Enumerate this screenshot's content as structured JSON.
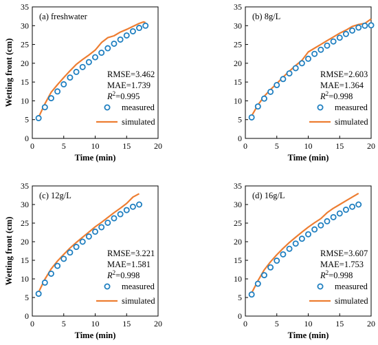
{
  "colors": {
    "measured_marker": "#1f7fc0",
    "simulated_line": "#ed7d31",
    "axis": "#000000",
    "background": "#ffffff"
  },
  "chart_data": [
    {
      "type": "scatter",
      "panel_label": "(a) freshwater",
      "xlabel": "Time (min)",
      "ylabel": "Wetting front (cm)",
      "xlim": [
        0,
        20
      ],
      "ylim": [
        0,
        35
      ],
      "xticks": [
        "0",
        "5",
        "10",
        "15",
        "20"
      ],
      "yticks": [
        "0",
        "5",
        "10",
        "15",
        "20",
        "25",
        "30",
        "35"
      ],
      "grid": false,
      "legend_position": "lower-right",
      "stats": {
        "rmse": "RMSE=3.462",
        "mae": "MAE=1.739",
        "r2_value": "=0.995"
      },
      "series": [
        {
          "name": "measured",
          "kind": "markers",
          "x": [
            1,
            2,
            3,
            4,
            5,
            6,
            7,
            8,
            9,
            10,
            11,
            12,
            13,
            14,
            15,
            16,
            17,
            18
          ],
          "y": [
            5.4,
            8.3,
            10.7,
            12.5,
            14.4,
            16.2,
            17.7,
            19.0,
            20.3,
            21.6,
            22.8,
            24.0,
            25.2,
            26.3,
            27.4,
            28.5,
            29.4,
            30.0
          ]
        },
        {
          "name": "simulated",
          "kind": "line",
          "x": [
            1,
            2,
            3,
            4,
            5,
            6,
            7,
            8,
            9,
            10,
            11,
            12,
            13,
            14,
            15,
            16,
            17,
            17.7,
            18
          ],
          "y": [
            5.6,
            9.2,
            12.3,
            14.3,
            16.2,
            18.0,
            19.7,
            21.0,
            22.2,
            23.5,
            25.5,
            26.8,
            27.3,
            28.3,
            29.0,
            29.8,
            30.6,
            31.0,
            30.8
          ]
        }
      ]
    },
    {
      "type": "scatter",
      "panel_label": "(b) 8g/L",
      "xlabel": "Time (min)",
      "ylabel": "",
      "xlim": [
        0,
        20
      ],
      "ylim": [
        0,
        35
      ],
      "xticks": [
        "0",
        "5",
        "10",
        "15",
        "20"
      ],
      "yticks": [
        "0",
        "5",
        "10",
        "15",
        "20",
        "25",
        "30",
        "35"
      ],
      "grid": false,
      "legend_position": "lower-right",
      "stats": {
        "rmse": "RMSE=2.603",
        "mae": "MAE=1.364",
        "r2_value": "=0.998"
      },
      "series": [
        {
          "name": "measured",
          "kind": "markers",
          "x": [
            1,
            2,
            3,
            4,
            5,
            6,
            7,
            8,
            9,
            10,
            11,
            12,
            13,
            14,
            15,
            16,
            17,
            18,
            19,
            20
          ],
          "y": [
            5.6,
            8.5,
            10.6,
            12.4,
            14.2,
            15.8,
            17.3,
            18.7,
            20.0,
            21.2,
            22.5,
            23.6,
            24.7,
            25.8,
            26.8,
            27.8,
            28.7,
            29.5,
            30.0,
            30.1
          ]
        },
        {
          "name": "simulated",
          "kind": "line",
          "x": [
            1,
            2,
            3,
            4,
            5,
            6,
            7,
            8,
            9,
            10,
            11,
            12,
            13,
            14,
            15,
            16,
            17,
            18,
            19,
            20
          ],
          "y": [
            6.0,
            8.9,
            11.2,
            13.0,
            14.6,
            16.3,
            17.9,
            19.4,
            20.8,
            23.0,
            24.0,
            25.0,
            26.0,
            27.0,
            28.0,
            28.8,
            29.8,
            30.3,
            30.6,
            31.8
          ]
        }
      ]
    },
    {
      "type": "scatter",
      "panel_label": "(c) 12g/L",
      "xlabel": "Time (min)",
      "ylabel": "Wetting front (cm)",
      "xlim": [
        0,
        20
      ],
      "ylim": [
        0,
        35
      ],
      "xticks": [
        "0",
        "5",
        "10",
        "15",
        "20"
      ],
      "yticks": [
        "0",
        "5",
        "10",
        "15",
        "20",
        "25",
        "30",
        "35"
      ],
      "grid": false,
      "legend_position": "lower-right",
      "stats": {
        "rmse": "RMSE=3.221",
        "mae": "MAE=1.581",
        "r2_value": "=0.998"
      },
      "series": [
        {
          "name": "measured",
          "kind": "markers",
          "x": [
            1,
            2,
            3,
            4,
            5,
            6,
            7,
            8,
            9,
            10,
            11,
            12,
            13,
            14,
            15,
            16,
            17
          ],
          "y": [
            6.0,
            9.0,
            11.4,
            13.5,
            15.4,
            17.1,
            18.6,
            20.0,
            21.4,
            22.7,
            23.9,
            25.1,
            26.3,
            27.4,
            28.5,
            29.4,
            30.0
          ]
        },
        {
          "name": "simulated",
          "kind": "line",
          "x": [
            1,
            2,
            3,
            4,
            5,
            6,
            7,
            8,
            9,
            10,
            11,
            12,
            13,
            14,
            15,
            16,
            17
          ],
          "y": [
            6.4,
            9.9,
            12.7,
            14.8,
            16.6,
            18.3,
            19.8,
            21.2,
            22.6,
            24.0,
            25.2,
            26.5,
            27.8,
            29.0,
            30.3,
            32.0,
            32.9
          ]
        }
      ]
    },
    {
      "type": "scatter",
      "panel_label": "(d) 16g/L",
      "xlabel": "Time (min)",
      "ylabel": "",
      "xlim": [
        0,
        20
      ],
      "ylim": [
        0,
        35
      ],
      "xticks": [
        "0",
        "5",
        "10",
        "15",
        "20"
      ],
      "yticks": [
        "0",
        "5",
        "10",
        "15",
        "20",
        "25",
        "30",
        "35"
      ],
      "grid": false,
      "legend_position": "lower-right",
      "stats": {
        "rmse": "RMSE=3.607",
        "mae": "MAE=1.753",
        "r2_value": "=0.998"
      },
      "series": [
        {
          "name": "measured",
          "kind": "markers",
          "x": [
            1,
            2,
            3,
            4,
            5,
            6,
            7,
            8,
            9,
            10,
            11,
            12,
            13,
            14,
            15,
            16,
            17,
            18
          ],
          "y": [
            5.8,
            8.7,
            11.0,
            13.1,
            14.9,
            16.6,
            18.1,
            19.5,
            20.8,
            22.0,
            23.3,
            24.4,
            25.5,
            26.6,
            27.6,
            28.6,
            29.4,
            30.0
          ]
        },
        {
          "name": "simulated",
          "kind": "line",
          "x": [
            1,
            2,
            3,
            4,
            5,
            6,
            7,
            8,
            9,
            10,
            11,
            12,
            13,
            14,
            15,
            16,
            17,
            18
          ],
          "y": [
            6.2,
            9.5,
            12.4,
            14.6,
            16.5,
            18.2,
            19.8,
            21.2,
            22.6,
            23.9,
            25.1,
            26.2,
            27.8,
            29.0,
            30.0,
            31.0,
            32.0,
            33.0
          ]
        }
      ]
    }
  ]
}
